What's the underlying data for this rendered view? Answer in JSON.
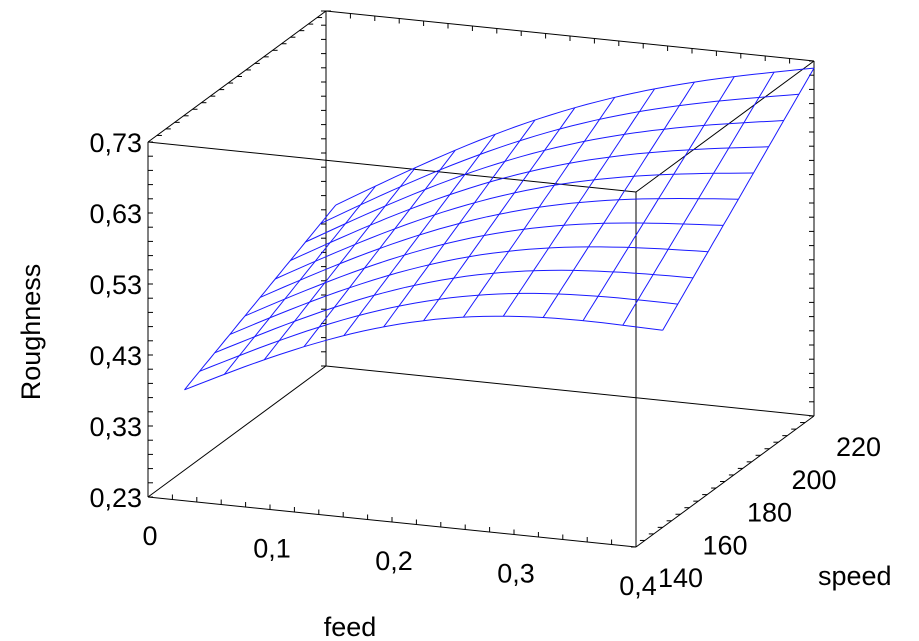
{
  "chart_data": {
    "type": "surface3d",
    "z_axis": {
      "label": "Roughness",
      "range": [
        0.23,
        0.73
      ],
      "ticks": [
        "0,23",
        "0,33",
        "0,43",
        "0,53",
        "0,63",
        "0,73"
      ]
    },
    "x_axis": {
      "label": "feed",
      "range": [
        0,
        0.4
      ],
      "ticks": [
        "0",
        "0,1",
        "0,2",
        "0,3",
        "0,4"
      ]
    },
    "y_axis": {
      "label": "speed",
      "range": [
        140,
        220
      ],
      "ticks": [
        "140",
        "160",
        "180",
        "200",
        "220"
      ]
    },
    "surface_color": "#1a1aff",
    "corner_values": {
      "feed_0_speed_140": 0.33,
      "feed_0.4_speed_140": 0.47,
      "feed_0_speed_220": 0.45,
      "feed_0.4_speed_220": 0.72
    },
    "grid": {
      "feed_steps": 12,
      "speed_steps": 10
    }
  }
}
